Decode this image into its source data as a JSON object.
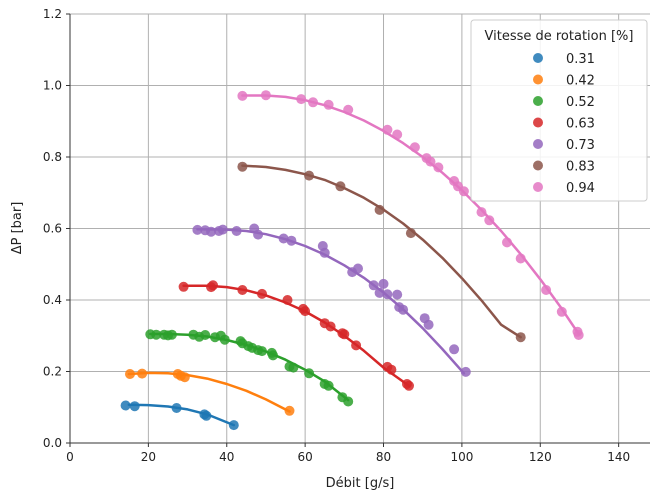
{
  "chart_data": {
    "type": "scatter",
    "xlabel": "Débit [g/s]",
    "ylabel": "ΔP [bar]",
    "xlim": [
      0,
      148
    ],
    "ylim": [
      0,
      1.2
    ],
    "xticks": [
      0,
      20,
      40,
      60,
      80,
      100,
      120,
      140
    ],
    "yticks": [
      0.0,
      0.2,
      0.4,
      0.6,
      0.8,
      1.0,
      1.2
    ],
    "xtick_labels": [
      "0",
      "20",
      "40",
      "60",
      "80",
      "100",
      "120",
      "140"
    ],
    "ytick_labels": [
      "0.0",
      "0.2",
      "0.4",
      "0.6",
      "0.8",
      "1.0",
      "1.2"
    ],
    "grid": true,
    "legend": {
      "title": "Vitesse de rotation [%]",
      "placement": "top-right"
    },
    "series": [
      {
        "name": "0.31",
        "color": "#1f77b4",
        "points": [
          [
            14.2,
            0.105
          ],
          [
            16.5,
            0.103
          ],
          [
            27.2,
            0.098
          ],
          [
            34.3,
            0.08
          ],
          [
            34.8,
            0.076
          ],
          [
            41.8,
            0.05
          ]
        ],
        "fit": [
          [
            15,
            0.107
          ],
          [
            20,
            0.106
          ],
          [
            25,
            0.102
          ],
          [
            30,
            0.094
          ],
          [
            35,
            0.08
          ],
          [
            41.8,
            0.05
          ]
        ]
      },
      {
        "name": "0.42",
        "color": "#ff7f0e",
        "points": [
          [
            15.3,
            0.193
          ],
          [
            18.4,
            0.194
          ],
          [
            27.5,
            0.193
          ],
          [
            28.3,
            0.188
          ],
          [
            29.3,
            0.184
          ],
          [
            56.0,
            0.09
          ]
        ],
        "fit": [
          [
            15,
            0.193
          ],
          [
            20,
            0.196
          ],
          [
            25,
            0.195
          ],
          [
            30,
            0.19
          ],
          [
            35,
            0.18
          ],
          [
            40,
            0.165
          ],
          [
            45,
            0.146
          ],
          [
            50,
            0.122
          ],
          [
            56,
            0.088
          ]
        ]
      },
      {
        "name": "0.52",
        "color": "#2ca02c",
        "points": [
          [
            20.5,
            0.304
          ],
          [
            22.0,
            0.303
          ],
          [
            24.0,
            0.303
          ],
          [
            25.0,
            0.301
          ],
          [
            26.0,
            0.303
          ],
          [
            31.5,
            0.303
          ],
          [
            33.0,
            0.297
          ],
          [
            34.5,
            0.302
          ],
          [
            37.0,
            0.296
          ],
          [
            38.5,
            0.3
          ],
          [
            39.5,
            0.289
          ],
          [
            43.5,
            0.285
          ],
          [
            44.0,
            0.279
          ],
          [
            45.5,
            0.271
          ],
          [
            46.5,
            0.266
          ],
          [
            48.0,
            0.26
          ],
          [
            49.0,
            0.257
          ],
          [
            51.5,
            0.252
          ],
          [
            51.8,
            0.245
          ],
          [
            56.0,
            0.214
          ],
          [
            57.0,
            0.211
          ],
          [
            61.0,
            0.195
          ],
          [
            65.0,
            0.165
          ],
          [
            66.0,
            0.16
          ],
          [
            69.5,
            0.128
          ],
          [
            71.0,
            0.116
          ]
        ],
        "fit": [
          [
            20.5,
            0.305
          ],
          [
            25,
            0.305
          ],
          [
            30,
            0.303
          ],
          [
            35,
            0.298
          ],
          [
            40,
            0.288
          ],
          [
            45,
            0.274
          ],
          [
            50,
            0.256
          ],
          [
            55,
            0.233
          ],
          [
            60,
            0.205
          ],
          [
            65,
            0.172
          ],
          [
            71,
            0.12
          ]
        ]
      },
      {
        "name": "0.63",
        "color": "#d62728",
        "points": [
          [
            29.0,
            0.437
          ],
          [
            36.0,
            0.436
          ],
          [
            36.5,
            0.441
          ],
          [
            44.0,
            0.428
          ],
          [
            49.0,
            0.417
          ],
          [
            55.5,
            0.4
          ],
          [
            59.5,
            0.375
          ],
          [
            60.0,
            0.369
          ],
          [
            65.0,
            0.335
          ],
          [
            66.5,
            0.326
          ],
          [
            69.5,
            0.307
          ],
          [
            70.0,
            0.304
          ],
          [
            73.0,
            0.273
          ],
          [
            81.0,
            0.213
          ],
          [
            82.0,
            0.205
          ],
          [
            86.0,
            0.165
          ],
          [
            86.5,
            0.16
          ]
        ],
        "fit": [
          [
            29,
            0.44
          ],
          [
            35,
            0.44
          ],
          [
            40,
            0.436
          ],
          [
            45,
            0.427
          ],
          [
            50,
            0.413
          ],
          [
            55,
            0.393
          ],
          [
            60,
            0.368
          ],
          [
            65,
            0.337
          ],
          [
            70,
            0.3
          ],
          [
            75,
            0.258
          ],
          [
            80,
            0.211
          ],
          [
            86.5,
            0.16
          ]
        ]
      },
      {
        "name": "0.73",
        "color": "#9467bd",
        "points": [
          [
            32.5,
            0.596
          ],
          [
            34.5,
            0.595
          ],
          [
            36.0,
            0.591
          ],
          [
            38.0,
            0.593
          ],
          [
            39.0,
            0.597
          ],
          [
            42.5,
            0.593
          ],
          [
            47.0,
            0.6
          ],
          [
            48.0,
            0.583
          ],
          [
            54.5,
            0.572
          ],
          [
            56.5,
            0.566
          ],
          [
            64.5,
            0.551
          ],
          [
            65.0,
            0.532
          ],
          [
            72.0,
            0.478
          ],
          [
            73.5,
            0.488
          ],
          [
            77.5,
            0.441
          ],
          [
            79.0,
            0.42
          ],
          [
            80.0,
            0.445
          ],
          [
            81.0,
            0.416
          ],
          [
            83.5,
            0.415
          ],
          [
            84.0,
            0.38
          ],
          [
            85.0,
            0.373
          ],
          [
            90.5,
            0.349
          ],
          [
            91.5,
            0.331
          ],
          [
            98.0,
            0.262
          ],
          [
            101.0,
            0.199
          ]
        ],
        "fit": [
          [
            32.5,
            0.598
          ],
          [
            40,
            0.597
          ],
          [
            45,
            0.593
          ],
          [
            50,
            0.584
          ],
          [
            55,
            0.57
          ],
          [
            60,
            0.551
          ],
          [
            65,
            0.527
          ],
          [
            70,
            0.497
          ],
          [
            75,
            0.462
          ],
          [
            80,
            0.421
          ],
          [
            85,
            0.374
          ],
          [
            90,
            0.321
          ],
          [
            95,
            0.263
          ],
          [
            100.5,
            0.195
          ]
        ]
      },
      {
        "name": "0.83",
        "color": "#8c564b",
        "points": [
          [
            44.0,
            0.773
          ],
          [
            61.0,
            0.748
          ],
          [
            69.0,
            0.718
          ],
          [
            79.0,
            0.652
          ],
          [
            87.0,
            0.587
          ],
          [
            115.0,
            0.296
          ]
        ],
        "fit": [
          [
            44,
            0.776
          ],
          [
            50,
            0.772
          ],
          [
            55,
            0.764
          ],
          [
            60,
            0.752
          ],
          [
            65,
            0.736
          ],
          [
            70,
            0.713
          ],
          [
            75,
            0.686
          ],
          [
            80,
            0.653
          ],
          [
            85,
            0.614
          ],
          [
            90,
            0.569
          ],
          [
            95,
            0.518
          ],
          [
            100,
            0.461
          ],
          [
            105,
            0.399
          ],
          [
            110,
            0.331
          ],
          [
            115,
            0.296
          ]
        ]
      },
      {
        "name": "0.94",
        "color": "#e377c2",
        "points": [
          [
            44.0,
            0.971
          ],
          [
            50.0,
            0.973
          ],
          [
            59.0,
            0.962
          ],
          [
            62.0,
            0.953
          ],
          [
            66.0,
            0.946
          ],
          [
            71.0,
            0.932
          ],
          [
            81.0,
            0.876
          ],
          [
            83.5,
            0.863
          ],
          [
            88.0,
            0.827
          ],
          [
            91.0,
            0.797
          ],
          [
            92.0,
            0.787
          ],
          [
            94.0,
            0.771
          ],
          [
            98.0,
            0.733
          ],
          [
            99.0,
            0.718
          ],
          [
            100.5,
            0.704
          ],
          [
            105.0,
            0.646
          ],
          [
            107.0,
            0.623
          ],
          [
            111.5,
            0.561
          ],
          [
            115.0,
            0.516
          ],
          [
            121.5,
            0.428
          ],
          [
            125.5,
            0.367
          ],
          [
            129.5,
            0.311
          ],
          [
            129.8,
            0.302
          ]
        ],
        "fit": [
          [
            44,
            0.972
          ],
          [
            50,
            0.972
          ],
          [
            55,
            0.968
          ],
          [
            60,
            0.959
          ],
          [
            65,
            0.945
          ],
          [
            70,
            0.926
          ],
          [
            75,
            0.902
          ],
          [
            80,
            0.873
          ],
          [
            85,
            0.839
          ],
          [
            90,
            0.8
          ],
          [
            95,
            0.756
          ],
          [
            100,
            0.707
          ],
          [
            105,
            0.652
          ],
          [
            110,
            0.593
          ],
          [
            115,
            0.528
          ],
          [
            120,
            0.458
          ],
          [
            125,
            0.383
          ],
          [
            129.8,
            0.305
          ]
        ]
      }
    ]
  }
}
